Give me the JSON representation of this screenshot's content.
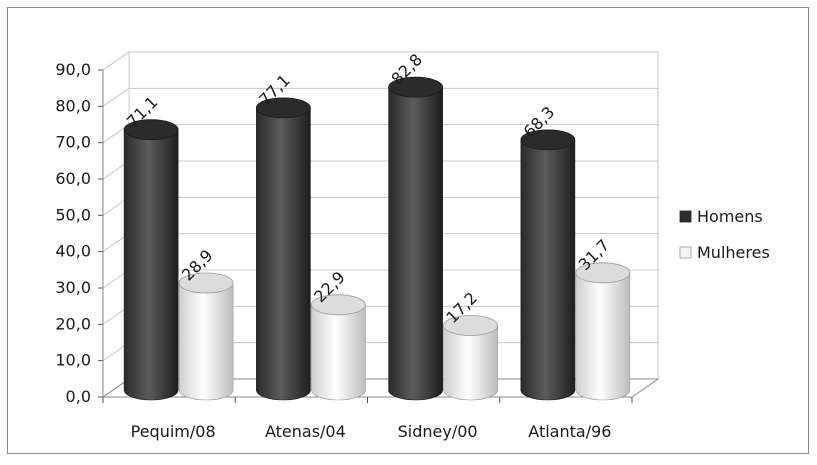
{
  "chart_data": {
    "type": "bar",
    "title": "",
    "xlabel": "",
    "ylabel": "",
    "categories": [
      "Pequim/08",
      "Atenas/04",
      "Sidney/00",
      "Atlanta/96"
    ],
    "series": [
      {
        "name": "Homens",
        "values": [
          71.1,
          77.1,
          82.8,
          68.3
        ],
        "labels": [
          "71,1",
          "77,1",
          "82,8",
          "68,3"
        ],
        "color": "#3a3a3a"
      },
      {
        "name": "Mulheres",
        "values": [
          28.9,
          22.9,
          17.2,
          31.7
        ],
        "labels": [
          "28,9",
          "22,9",
          "17,2",
          "31,7"
        ],
        "color": "#eeeeee"
      }
    ],
    "ylim": [
      0,
      90
    ],
    "yticks": [
      0,
      10,
      20,
      30,
      40,
      50,
      60,
      70,
      80,
      90
    ],
    "ytick_labels": [
      "0,0",
      "10,0",
      "20,0",
      "30,0",
      "40,0",
      "50,0",
      "60,0",
      "70,0",
      "80,0",
      "90,0"
    ],
    "grid": true,
    "style": "3d-cylinder",
    "legend_position": "right"
  }
}
